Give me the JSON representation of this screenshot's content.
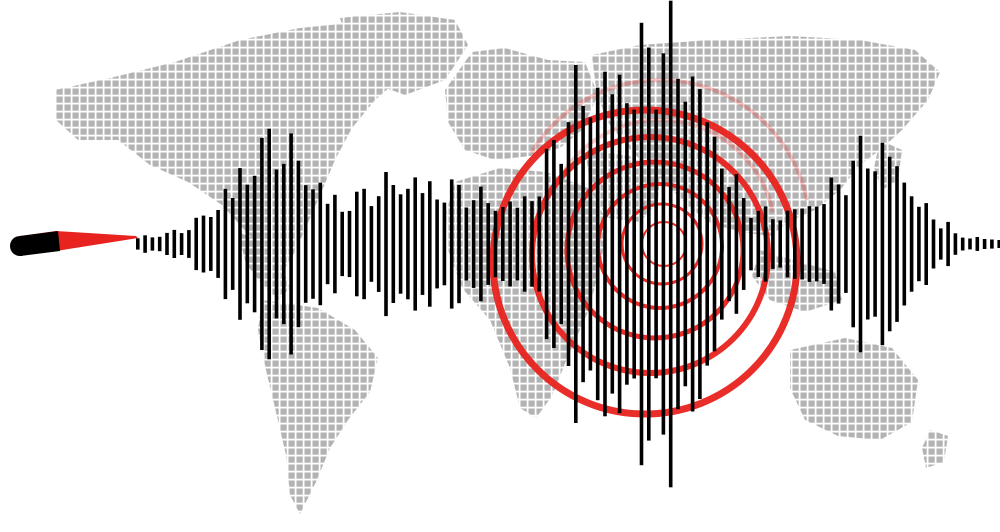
{
  "scene": {
    "subject": "seismogram",
    "background_color": "#ffffff",
    "map_color": "#b3b3b3",
    "wave_color": "#000000",
    "ripple_color": "#e8221e",
    "needle_color": "#e8221e",
    "needle_tip_color": "#000000"
  }
}
